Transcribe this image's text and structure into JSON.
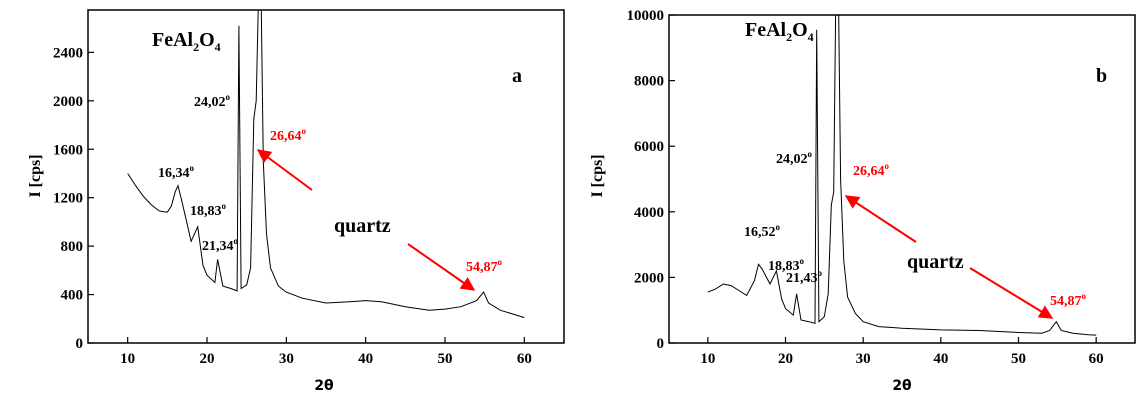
{
  "chart_data": [
    {
      "type": "line",
      "panel_label": "a",
      "xlabel": "2θ",
      "ylabel": "I [cps]",
      "xlim": [
        5,
        65
      ],
      "ylim": [
        0,
        2750
      ],
      "xticks": [
        10,
        20,
        30,
        40,
        50,
        60
      ],
      "yticks": [
        0,
        400,
        800,
        1200,
        1600,
        2000,
        2400
      ],
      "grid": false,
      "series_color": "#000000",
      "x": [
        10,
        10.5,
        11,
        12,
        13,
        14,
        15,
        15.5,
        16,
        16.34,
        16.8,
        17.5,
        18,
        18.83,
        19.5,
        20,
        21,
        21.34,
        22,
        23,
        23.8,
        24.02,
        24.3,
        25,
        25.5,
        25.9,
        26.2,
        26.45,
        26.64,
        26.85,
        27.1,
        27.5,
        28,
        29,
        30,
        32,
        35,
        38,
        40,
        42,
        45,
        48,
        50,
        52,
        54,
        54.87,
        55.5,
        57,
        59,
        60
      ],
      "y": [
        1400,
        1350,
        1300,
        1210,
        1140,
        1090,
        1080,
        1130,
        1250,
        1300,
        1180,
        980,
        840,
        960,
        640,
        560,
        500,
        690,
        470,
        450,
        430,
        2620,
        450,
        480,
        620,
        1850,
        2000,
        2750,
        2750,
        2750,
        1500,
        900,
        620,
        470,
        420,
        370,
        330,
        340,
        350,
        340,
        300,
        270,
        280,
        300,
        350,
        420,
        330,
        270,
        230,
        210
      ],
      "annotations": [
        {
          "text": "FeAl2O4",
          "x": 24.02,
          "y": 2620,
          "color": "#000000"
        },
        {
          "text": "24,02°",
          "x": 24.02,
          "y": 2000,
          "color": "#000000"
        },
        {
          "text": "16,34°",
          "x": 16.34,
          "y": 1300,
          "color": "#000000"
        },
        {
          "text": "18,83°",
          "x": 18.83,
          "y": 960,
          "color": "#000000"
        },
        {
          "text": "21,34°",
          "x": 21.34,
          "y": 690,
          "color": "#000000"
        },
        {
          "text": "26,64°",
          "x": 26.64,
          "y": 1650,
          "color": "#ff0000"
        },
        {
          "text": "54,87°",
          "x": 54.87,
          "y": 420,
          "color": "#ff0000"
        },
        {
          "text": "quartz",
          "color": "#000000"
        }
      ],
      "arrow_color": "#ff0000"
    },
    {
      "type": "line",
      "panel_label": "b",
      "xlabel": "2θ",
      "ylabel": "I [cps]",
      "xlim": [
        5,
        65
      ],
      "ylim": [
        0,
        10000
      ],
      "xticks": [
        10,
        20,
        30,
        40,
        50,
        60
      ],
      "yticks": [
        0,
        2000,
        4000,
        6000,
        8000,
        10000
      ],
      "grid": false,
      "series_color": "#000000",
      "x": [
        10,
        11,
        12,
        13,
        14,
        15,
        16,
        16.52,
        17,
        18,
        18.83,
        19.5,
        20,
        21,
        21.43,
        22,
        23,
        23.8,
        24.02,
        24.3,
        25,
        25.5,
        25.9,
        26.2,
        26.45,
        26.64,
        26.85,
        27.1,
        27.5,
        28,
        29,
        30,
        32,
        35,
        40,
        45,
        50,
        53,
        54,
        54.87,
        55.5,
        57,
        59,
        60
      ],
      "y": [
        1550,
        1650,
        1800,
        1750,
        1600,
        1450,
        1900,
        2400,
        2250,
        1800,
        2200,
        1350,
        1050,
        850,
        1500,
        700,
        650,
        600,
        9550,
        650,
        800,
        1500,
        4200,
        4600,
        10000,
        10000,
        10000,
        5000,
        2500,
        1400,
        900,
        650,
        500,
        450,
        400,
        380,
        320,
        300,
        380,
        650,
        380,
        300,
        250,
        240
      ],
      "annotations": [
        {
          "text": "FeAl2O4",
          "x": 24.02,
          "y": 9550,
          "color": "#000000"
        },
        {
          "text": "24,02°",
          "x": 24.02,
          "y": 6000,
          "color": "#000000"
        },
        {
          "text": "16,52°",
          "x": 16.52,
          "y": 2400,
          "color": "#000000"
        },
        {
          "text": "18,83°",
          "x": 18.83,
          "y": 2200,
          "color": "#000000"
        },
        {
          "text": "21,43°",
          "x": 21.43,
          "y": 1500,
          "color": "#000000"
        },
        {
          "text": "26,64°",
          "x": 26.64,
          "y": 4600,
          "color": "#ff0000"
        },
        {
          "text": "54,87°",
          "x": 54.87,
          "y": 650,
          "color": "#ff0000"
        },
        {
          "text": "quartz",
          "color": "#000000"
        }
      ],
      "arrow_color": "#ff0000"
    }
  ]
}
